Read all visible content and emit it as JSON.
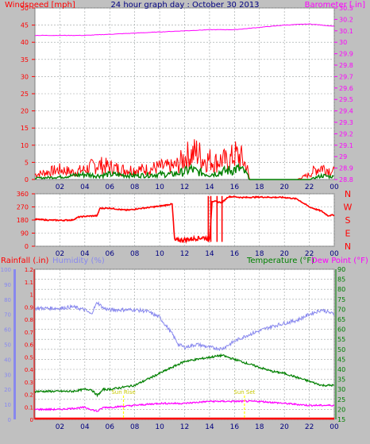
{
  "colors": {
    "background": "#c0c0c0",
    "plot_bg": "#ffffff",
    "grid": "#9aa0a0",
    "wind_avg": "#008000",
    "wind_gust": "#ff0000",
    "barometer": "#ff00ff",
    "direction": "#ff0000",
    "rainfall": "#ff0000",
    "humidity": "#8888ee",
    "temperature": "#008000",
    "dewpoint": "#ff00ff",
    "marker": "#ffff00",
    "header_title": "#000080",
    "tick_text": "#000080"
  },
  "chart_data": [
    {
      "type": "line",
      "title": "24 hour graph day : October 30 2013",
      "x_ticks": [
        "02",
        "04",
        "06",
        "08",
        "10",
        "12",
        "14",
        "16",
        "18",
        "20",
        "22",
        "00"
      ],
      "x_range_hours": [
        0,
        24
      ],
      "left_axis": {
        "label": "Windspeed [mph]",
        "ylim": [
          0,
          50
        ],
        "ticks": [
          "0",
          "5",
          "10",
          "15",
          "20",
          "25",
          "30",
          "35",
          "40",
          "45",
          "50"
        ]
      },
      "right_axis": {
        "label": "Barometer [.in]",
        "ylim": [
          28.8,
          30.3
        ],
        "ticks": [
          "28.8",
          "28.9",
          "29",
          "29.1",
          "29.2",
          "29.3",
          "29.4",
          "29.5",
          "29.6",
          "29.7",
          "29.8",
          "29.9",
          "30",
          "30.1",
          "30.2",
          "30.3"
        ]
      },
      "grid": true,
      "series": [
        {
          "name": "Windspeed",
          "axis": "left",
          "style": "gust",
          "x": [
            0,
            1,
            2,
            3,
            4,
            5,
            6,
            7,
            8,
            9,
            10,
            11,
            11.5,
            12,
            12.5,
            13,
            13.5,
            14,
            14.5,
            15,
            15.5,
            16,
            16.5,
            17,
            17.2,
            18,
            19,
            20,
            21,
            22,
            22.5,
            23,
            23.5,
            24
          ],
          "values": [
            2,
            3,
            4,
            3,
            4,
            6,
            5,
            4,
            4,
            4,
            5,
            5,
            6,
            9,
            10,
            11,
            8,
            8,
            7,
            8,
            7,
            10,
            9,
            5,
            0,
            0,
            0,
            0,
            0,
            2,
            4,
            5,
            4,
            3
          ]
        },
        {
          "name": "Windspeed",
          "axis": "left",
          "style": "avg",
          "x": [
            0,
            2,
            4,
            5,
            6,
            8,
            10,
            11,
            12,
            12.5,
            13,
            14,
            15,
            16,
            16.5,
            17,
            17.2,
            22,
            23,
            24
          ],
          "values": [
            0.5,
            1,
            2,
            1.5,
            2,
            1.5,
            2,
            2,
            3,
            4,
            3,
            2,
            3,
            4,
            4,
            2,
            0,
            0,
            1.5,
            1
          ]
        },
        {
          "name": "Barometer",
          "axis": "right",
          "x": [
            0,
            4,
            8,
            12,
            14,
            16,
            18,
            20,
            22,
            23,
            24
          ],
          "values": [
            30.06,
            30.06,
            30.08,
            30.1,
            30.11,
            30.11,
            30.13,
            30.15,
            30.16,
            30.15,
            30.14
          ]
        }
      ]
    },
    {
      "type": "line",
      "x_ticks": [
        "02",
        "04",
        "06",
        "08",
        "10",
        "12",
        "14",
        "16",
        "18",
        "20",
        "22",
        "00"
      ],
      "x_range_hours": [
        0,
        24
      ],
      "left_axis": {
        "ylim": [
          0,
          360
        ],
        "ticks": [
          "0",
          "90",
          "180",
          "270",
          "360"
        ]
      },
      "right_axis": {
        "ticks": [
          "N",
          "E",
          "S",
          "W",
          "N"
        ]
      },
      "grid": true,
      "series": [
        {
          "name": "Wind direction",
          "axis": "left",
          "x": [
            0,
            1,
            2,
            3,
            3.5,
            4,
            5,
            5.2,
            6,
            7,
            7.5,
            8,
            9,
            10,
            11,
            11.2,
            12,
            13,
            13.5,
            14,
            14.2,
            15,
            15.5,
            16,
            16.5,
            17,
            18,
            19,
            20,
            21,
            22,
            23,
            23.5,
            24
          ],
          "values": [
            185,
            180,
            178,
            180,
            200,
            205,
            210,
            260,
            262,
            250,
            248,
            255,
            265,
            275,
            290,
            40,
            45,
            55,
            60,
            50,
            310,
            300,
            340,
            340,
            335,
            335,
            338,
            336,
            335,
            325,
            270,
            240,
            210,
            215
          ]
        }
      ]
    },
    {
      "type": "line",
      "x_ticks": [
        "02",
        "04",
        "06",
        "08",
        "10",
        "12",
        "14",
        "16",
        "18",
        "20",
        "22",
        "00"
      ],
      "x_range_hours": [
        0,
        24
      ],
      "annotations": [
        {
          "x": 7.1,
          "text": "Sun Rise"
        },
        {
          "x": 16.8,
          "text": "Sun Set"
        }
      ],
      "axes": {
        "rainfall": {
          "label": "Rainfall (.in)",
          "ylim": [
            0,
            1.2
          ],
          "ticks": [
            "0",
            "0.1",
            "0.2",
            "0.3",
            "0.4",
            "0.5",
            "0.6",
            "0.7",
            "0.8",
            "0.9",
            "1",
            "1.1",
            "1.2"
          ]
        },
        "humidity": {
          "label": "Humidity (%)",
          "ylim": [
            0,
            100
          ],
          "ticks": [
            "0",
            "10",
            "20",
            "30",
            "40",
            "50",
            "60",
            "70",
            "80",
            "90",
            "100"
          ]
        },
        "temperature": {
          "label": "Temperature (°F)",
          "ylim": [
            15,
            90
          ],
          "ticks": [
            "15",
            "20",
            "25",
            "30",
            "35",
            "40",
            "45",
            "50",
            "55",
            "60",
            "65",
            "70",
            "75",
            "80",
            "85",
            "90"
          ]
        },
        "dewpoint": {
          "label": "Dew Point (°F)"
        }
      },
      "grid": true,
      "series": [
        {
          "name": "Rainfall",
          "axis": "rainfall",
          "x": [
            0,
            24
          ],
          "values": [
            0,
            0
          ]
        },
        {
          "name": "Humidity",
          "axis": "humidity",
          "x": [
            0,
            2,
            3,
            4,
            4.5,
            5,
            5.5,
            6,
            7,
            8,
            9,
            10,
            11,
            11.5,
            12,
            13,
            14,
            15,
            16,
            17,
            18,
            19,
            20,
            21,
            22,
            23,
            24
          ],
          "values": [
            74,
            74,
            75,
            73,
            70,
            78,
            74,
            73,
            73,
            73,
            72,
            68,
            57,
            50,
            48,
            50,
            48,
            47,
            52,
            56,
            59,
            62,
            64,
            66,
            70,
            73,
            70
          ]
        },
        {
          "name": "Temperature",
          "axis": "temperature",
          "x": [
            0,
            1,
            2,
            3,
            4,
            4.5,
            5,
            5.5,
            6,
            7,
            8,
            9,
            10,
            11,
            12,
            13,
            14,
            15,
            16,
            17,
            18,
            19,
            20,
            21,
            22,
            23,
            24
          ],
          "values": [
            29,
            29,
            29,
            29,
            30,
            30,
            27,
            30,
            30,
            31,
            32,
            35,
            38,
            41,
            44,
            45,
            46,
            47,
            45,
            43,
            41,
            39,
            38,
            36,
            34,
            32,
            32
          ]
        },
        {
          "name": "Dew Point",
          "axis": "temperature",
          "x": [
            0,
            2,
            4,
            5,
            5.5,
            6,
            8,
            10,
            12,
            14,
            16,
            18,
            20,
            22,
            24
          ],
          "values": [
            20,
            20,
            21,
            19,
            21,
            21,
            22,
            23,
            23,
            24,
            24,
            24,
            23,
            22,
            22
          ]
        }
      ]
    }
  ]
}
